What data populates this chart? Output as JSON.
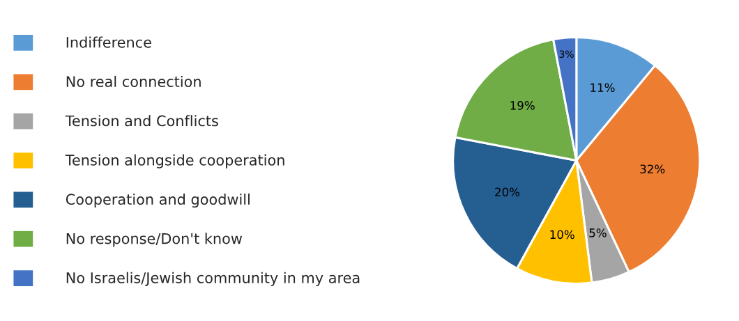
{
  "chart_data": {
    "type": "pie",
    "categories": [
      "Indifference",
      "No real connection",
      "Tension and Conflicts",
      "Tension alongside cooperation",
      "Cooperation and goodwill",
      "No response/Don't know",
      "No Israelis/Jewish community in my area"
    ],
    "values": [
      11,
      32,
      5,
      10,
      20,
      19,
      3
    ],
    "value_labels": [
      "11%",
      "32%",
      "5%",
      "10%",
      "20%",
      "19%",
      "3%"
    ],
    "colors": [
      "#5b9bd5",
      "#ed7d31",
      "#a5a5a5",
      "#ffc000",
      "#255e91",
      "#70ad47",
      "#4472c4"
    ],
    "legend": "left"
  }
}
